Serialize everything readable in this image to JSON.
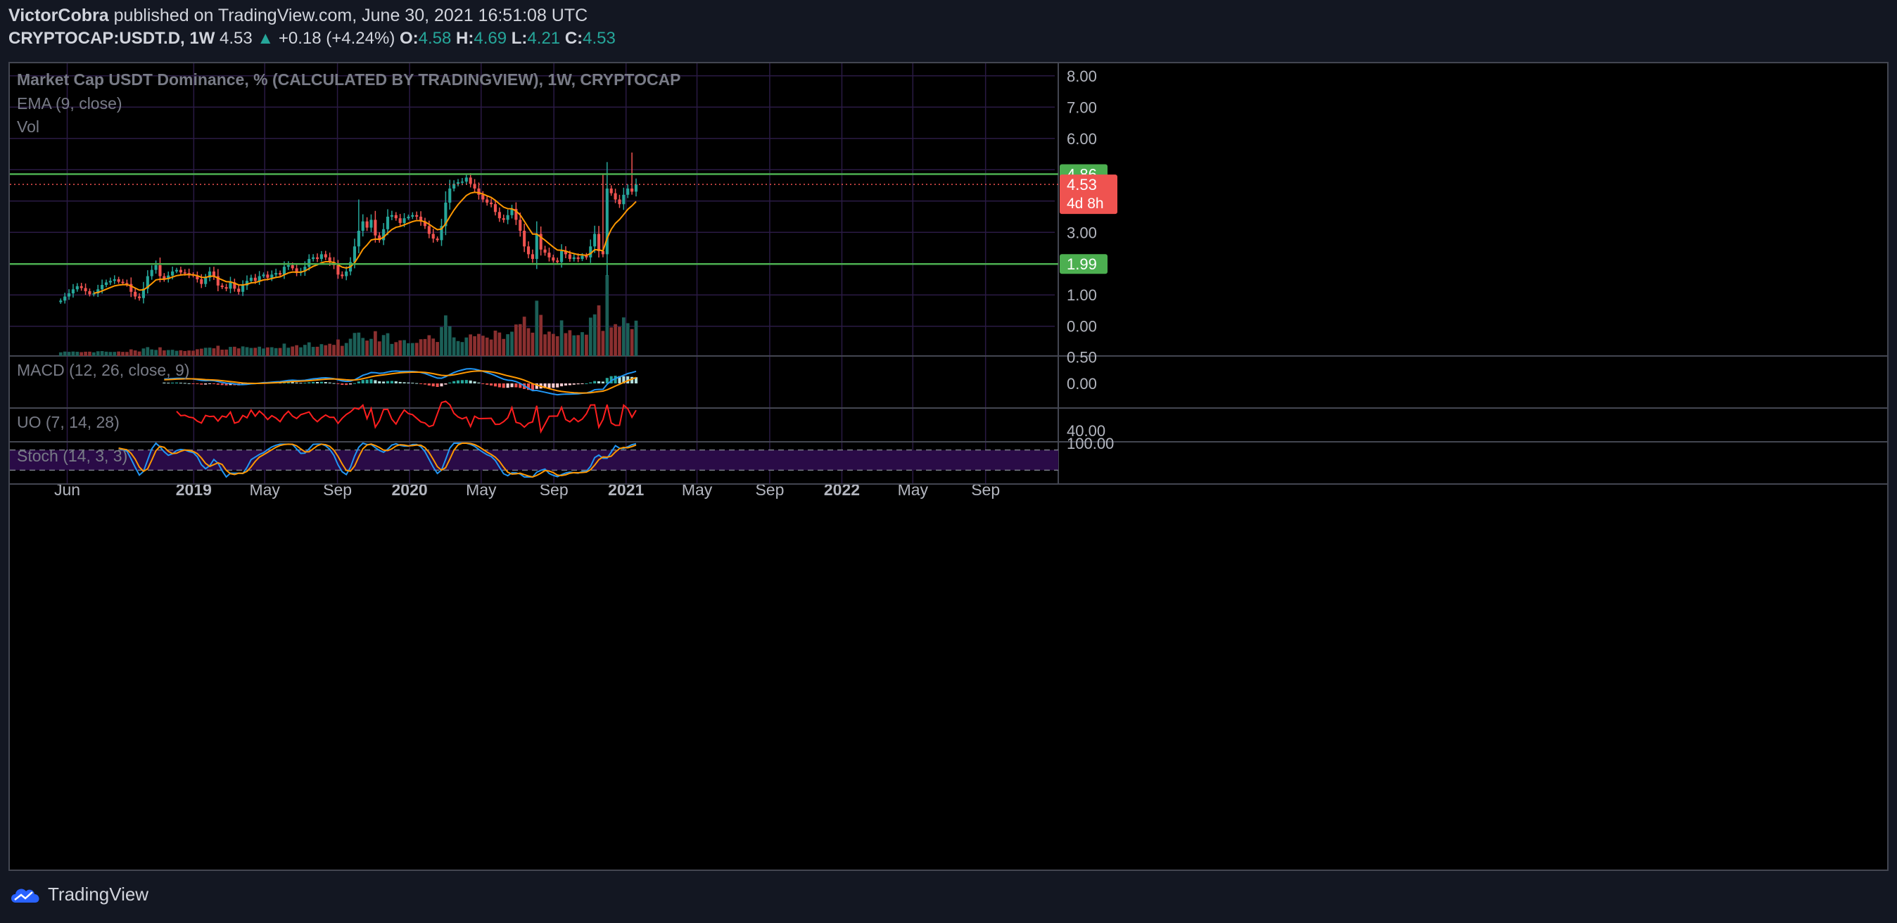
{
  "header": {
    "author": "VictorCobra",
    "published_text": "published on TradingView.com, June 30, 2021 16:51:08 UTC",
    "symbol": "CRYPTOCAP:USDT.D, 1W",
    "last": "4.53",
    "change": "+0.18 (+4.24%)",
    "open_label": "O:",
    "open": "4.58",
    "high_label": "H:",
    "high": "4.69",
    "low_label": "L:",
    "low": "4.21",
    "close_label": "C:",
    "close": "4.53"
  },
  "legend": {
    "title": "Market Cap USDT Dominance, % (CALCULATED BY TRADINGVIEW), 1W, CRYPTOCAP",
    "ema": "EMA (9, close)",
    "vol": "Vol",
    "macd": "MACD (12, 26, close, 9)",
    "uo": "UO (7, 14, 28)",
    "stoch": "Stoch (14, 3, 3)"
  },
  "footer": {
    "brand": "TradingView"
  },
  "colors": {
    "up": "#26a69a",
    "down": "#ef5350",
    "ema": "#ff9800",
    "level": "#4caf50",
    "macd_line": "#2196f3",
    "signal_line": "#ff9800",
    "uo": "#ff1e1e",
    "stoch_k": "#2196f3",
    "stoch_d": "#ff9800"
  },
  "chart_data": {
    "type": "candlestick",
    "price_axis": {
      "labels": [
        "8.00",
        "7.00",
        "6.00",
        "5.00",
        "4.00",
        "3.00",
        "2.00",
        "1.00",
        "0.00"
      ],
      "ylim": [
        -0.95,
        8.4
      ]
    },
    "time_axis": {
      "labels": [
        {
          "text": "Jun",
          "date": "2018-06-01",
          "bold": false
        },
        {
          "text": "2019",
          "date": "2019-01-01",
          "bold": true
        },
        {
          "text": "May",
          "date": "2019-05-01",
          "bold": false
        },
        {
          "text": "Sep",
          "date": "2019-09-01",
          "bold": false
        },
        {
          "text": "2020",
          "date": "2020-01-01",
          "bold": true
        },
        {
          "text": "May",
          "date": "2020-05-01",
          "bold": false
        },
        {
          "text": "Sep",
          "date": "2020-09-01",
          "bold": false
        },
        {
          "text": "2021",
          "date": "2021-01-01",
          "bold": true
        },
        {
          "text": "May",
          "date": "2021-05-01",
          "bold": false
        },
        {
          "text": "Sep",
          "date": "2021-09-01",
          "bold": false
        },
        {
          "text": "2022",
          "date": "2022-01-01",
          "bold": true
        },
        {
          "text": "May",
          "date": "2022-05-01",
          "bold": false
        },
        {
          "text": "Sep",
          "date": "2022-09-01",
          "bold": false
        }
      ],
      "xlim": [
        "2018-02-24",
        "2022-12-27"
      ]
    },
    "levels": [
      {
        "value": 4.86,
        "label": "4.86"
      },
      {
        "value": 1.99,
        "label": "1.99"
      }
    ],
    "last_price": {
      "value": 4.53,
      "label": "4.53",
      "countdown": "4d 8h"
    },
    "candles_anchor": {
      "start": "2018-05-21",
      "step_days": 7
    },
    "candle_close_path": [
      0.82,
      0.95,
      1.05,
      1.18,
      1.28,
      1.22,
      1.12,
      1.02,
      1.05,
      1.18,
      1.32,
      1.4,
      1.45,
      1.5,
      1.42,
      1.38,
      1.35,
      1.1,
      0.95,
      0.9,
      1.2,
      1.6,
      1.8,
      1.95,
      1.6,
      1.5,
      1.62,
      1.75,
      1.8,
      1.72,
      1.7,
      1.65,
      1.62,
      1.5,
      1.35,
      1.55,
      1.75,
      1.6,
      1.3,
      1.25,
      1.2,
      1.4,
      1.2,
      1.1,
      1.3,
      1.45,
      1.55,
      1.45,
      1.6,
      1.65,
      1.55,
      1.65,
      1.7,
      1.65,
      1.9,
      1.95,
      1.85,
      1.7,
      1.75,
      1.9,
      2.15,
      2.2,
      2.15,
      2.3,
      2.2,
      2.05,
      1.95,
      1.65,
      1.6,
      1.75,
      2.05,
      2.55,
      3.05,
      3.35,
      3.15,
      3.4,
      2.9,
      2.75,
      3.1,
      3.5,
      3.55,
      3.45,
      3.3,
      3.45,
      3.5,
      3.55,
      3.5,
      3.35,
      3.2,
      2.95,
      2.8,
      2.75,
      3.2,
      3.95,
      4.4,
      4.55,
      4.6,
      4.62,
      4.75,
      4.55,
      4.4,
      4.2,
      4.05,
      3.95,
      3.9,
      3.65,
      3.45,
      3.4,
      3.55,
      3.75,
      3.4,
      3.05,
      2.55,
      2.3,
      2.15,
      2.95,
      2.45,
      2.35,
      2.2,
      2.1,
      2.05,
      2.4,
      2.3,
      2.15,
      2.2,
      2.15,
      2.25,
      2.2,
      2.55,
      2.95,
      2.4,
      2.3,
      4.4,
      4.25,
      4.05,
      3.9,
      4.2,
      4.4,
      4.3,
      4.53
    ],
    "ema": {
      "period": 9,
      "source": "close"
    },
    "volume": {
      "shown": true
    },
    "macd": {
      "fast": 12,
      "slow": 26,
      "signal": 9,
      "axis_labels": [
        "0.50",
        "0.00"
      ]
    },
    "uo": {
      "periods": [
        7,
        14,
        28
      ],
      "axis_labels": [
        "40.00"
      ]
    },
    "stoch": {
      "k": 14,
      "d": 3,
      "smooth": 3,
      "axis_labels": [
        "100.00"
      ],
      "bands": [
        80,
        20
      ]
    }
  }
}
